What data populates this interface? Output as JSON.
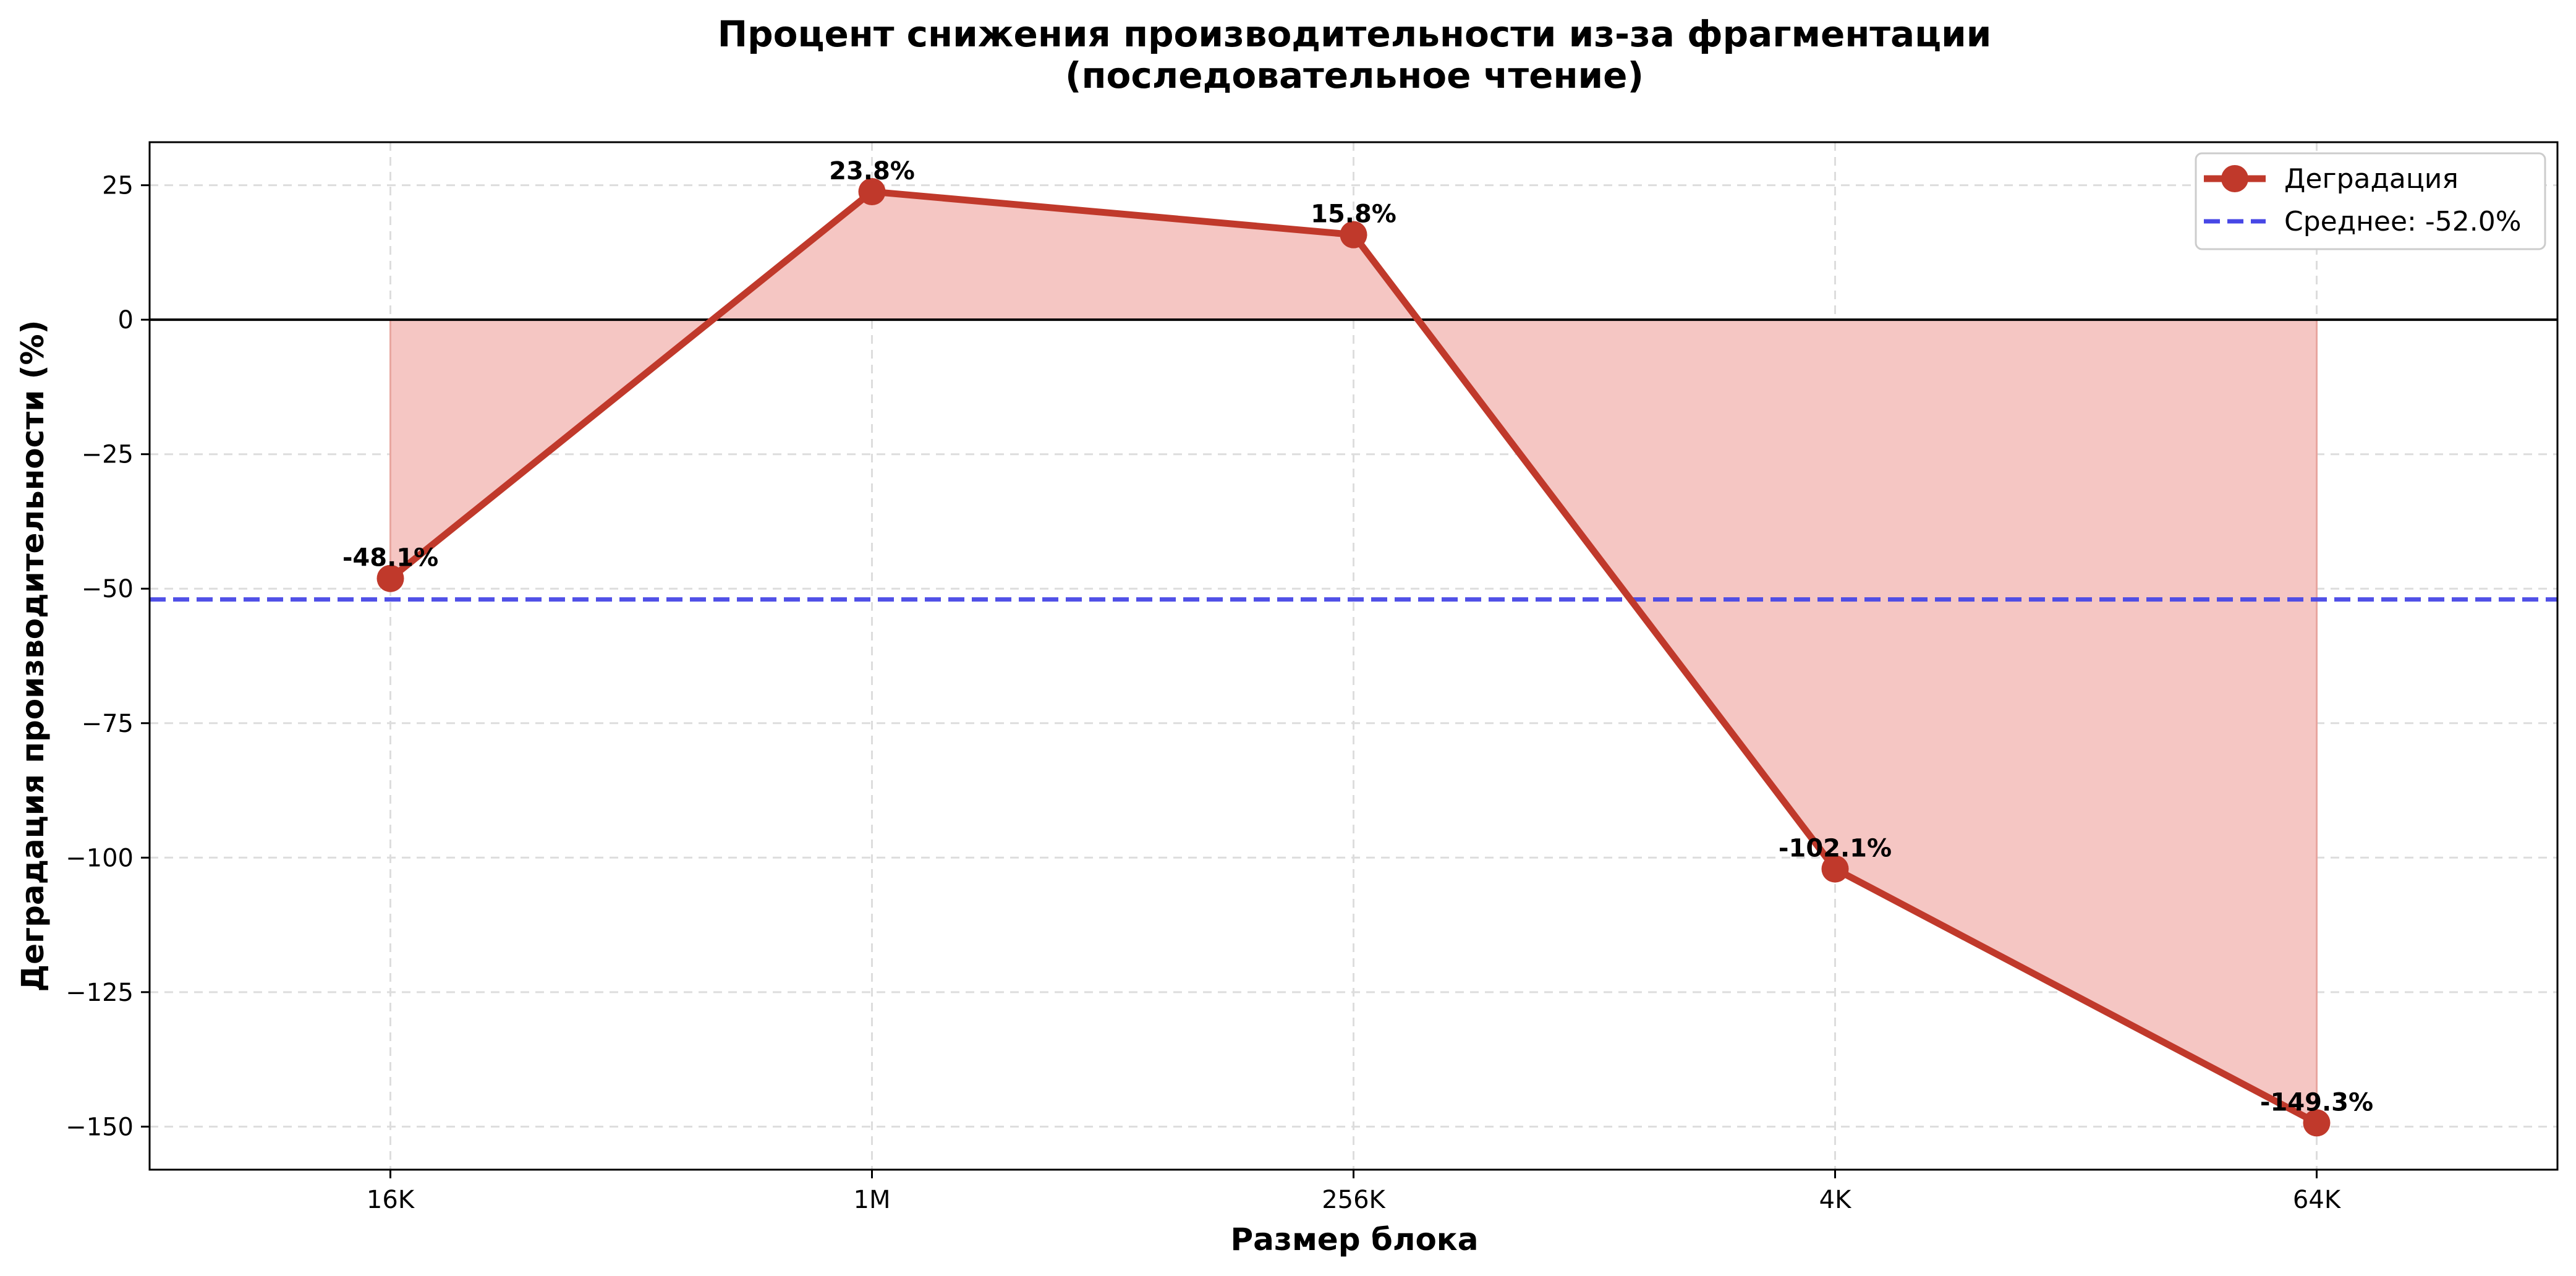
{
  "chart_data": {
    "type": "line",
    "title_line1": "Процент снижения производительности из-за фрагментации",
    "title_line2": "(последовательное чтение)",
    "xlabel": "Размер блока",
    "ylabel": "Деградация производительности (%)",
    "categories": [
      "16K",
      "1M",
      "256K",
      "4K",
      "64K"
    ],
    "series": [
      {
        "name": "Деградация",
        "values": [
          -48.1,
          23.8,
          15.8,
          -102.1,
          -149.3
        ],
        "color": "#c0392b",
        "fill_color": "#f5c6c3"
      }
    ],
    "data_labels": [
      "-48.1%",
      "23.8%",
      "15.8%",
      "-102.1%",
      "-149.3%"
    ],
    "mean": {
      "value": -52.0,
      "label": "Среднее: -52.0%",
      "color": "#4747e6"
    },
    "ylim": [
      -158,
      33
    ],
    "yticks": [
      25,
      0,
      -25,
      -50,
      -75,
      -100,
      -125,
      -150
    ],
    "ytick_labels": [
      "25",
      "0",
      "−25",
      "−50",
      "−75",
      "−100",
      "−125",
      "−150"
    ],
    "grid": true,
    "zero_line": true,
    "legend_position": "top-right"
  }
}
